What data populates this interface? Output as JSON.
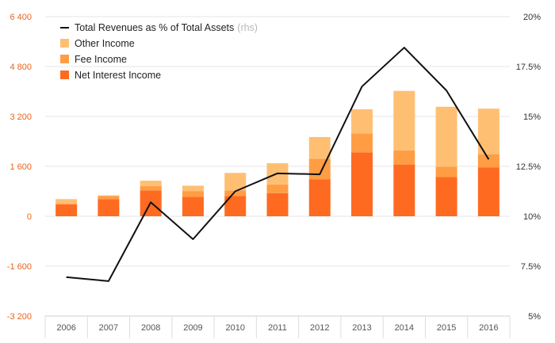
{
  "chart_data": {
    "type": "bar",
    "stacked": true,
    "categories": [
      "2006",
      "2007",
      "2008",
      "2009",
      "2010",
      "2011",
      "2012",
      "2013",
      "2014",
      "2015",
      "2016"
    ],
    "series": [
      {
        "name": "Net Interest Income",
        "color": "#ff6a21",
        "values": [
          380,
          550,
          830,
          620,
          650,
          740,
          1190,
          2050,
          1660,
          1260,
          1570
        ]
      },
      {
        "name": "Fee Income",
        "color": "#ff9d45",
        "values": [
          20,
          100,
          140,
          180,
          180,
          280,
          650,
          610,
          450,
          330,
          420
        ]
      },
      {
        "name": "Other Income",
        "color": "#ffbf73",
        "values": [
          150,
          20,
          170,
          180,
          560,
          680,
          700,
          770,
          1910,
          1920,
          1460
        ]
      }
    ],
    "line": {
      "name": "Total Revenues as % of Total Assets",
      "legend_suffix": "(rhs)",
      "axis": "right",
      "color": "#111111",
      "values": [
        6.95,
        6.75,
        10.7,
        8.85,
        11.25,
        12.15,
        12.1,
        16.5,
        18.45,
        16.3,
        12.85
      ]
    },
    "y_left": {
      "ticks": [
        -3200,
        -1600,
        0,
        1600,
        3200,
        4800,
        6400
      ],
      "tick_labels": [
        "-3 200",
        "-1 600",
        "0",
        "1 600",
        "3 200",
        "4 800",
        "6 400"
      ],
      "range": [
        -3200,
        6400
      ],
      "color": "#e8641e"
    },
    "y_right": {
      "ticks": [
        5,
        7.5,
        10,
        12.5,
        15,
        17.5,
        20
      ],
      "tick_labels": [
        "5%",
        "7.5%",
        "10%",
        "12.5%",
        "15%",
        "17.5%",
        "20%"
      ],
      "range": [
        5,
        20
      ]
    },
    "grid": true,
    "legend_position": "top-left",
    "legend_order": [
      "line",
      "Other Income",
      "Fee Income",
      "Net Interest Income"
    ]
  }
}
